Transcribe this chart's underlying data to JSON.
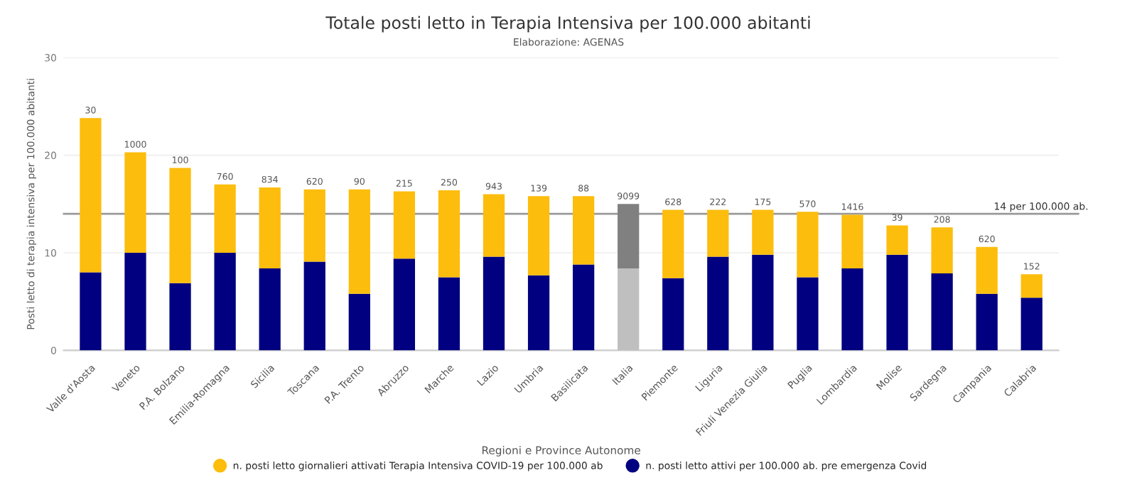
{
  "chart_data": {
    "type": "bar",
    "title": "Totale posti letto in Terapia Intensiva per 100.000 abitanti",
    "subtitle": "Elaborazione: AGENAS",
    "xlabel": "Regioni e Province Autonome",
    "ylabel": "Posti letto di terapia intensiva per 100.000 abitanti",
    "categories": [
      "Valle d'Aosta",
      "Veneto",
      "P.A. Bolzano",
      "Emilia-Romagna",
      "Sicilia",
      "Toscana",
      "P.A. Trento",
      "Abruzzo",
      "Marche",
      "Lazio",
      "Umbria",
      "Basilicata",
      "Italia",
      "Piemonte",
      "Liguria",
      "Friuli Venezia Giulia",
      "Puglia",
      "Lombardia",
      "Molise",
      "Sardegna",
      "Campania",
      "Calabria"
    ],
    "stacked": true,
    "series": [
      {
        "name": "n. posti letto attivi per 100.000 ab. pre emergenza Covid",
        "color": "#000080",
        "colors": [
          "#000080",
          "#000080",
          "#000080",
          "#000080",
          "#000080",
          "#000080",
          "#000080",
          "#000080",
          "#000080",
          "#000080",
          "#000080",
          "#000080",
          "#bfbfbf",
          "#000080",
          "#000080",
          "#000080",
          "#000080",
          "#000080",
          "#000080",
          "#000080",
          "#000080",
          "#000080"
        ],
        "values": [
          8.0,
          10.0,
          6.9,
          10.0,
          8.4,
          9.1,
          5.8,
          9.4,
          7.5,
          9.6,
          7.7,
          8.8,
          8.4,
          7.4,
          9.6,
          9.8,
          7.5,
          8.4,
          9.8,
          7.9,
          5.8,
          5.4
        ]
      },
      {
        "name": "n. posti letto giornalieri attivati Terapia Intensiva COVID-19 per 100.000 ab",
        "color": "#fdbd0c",
        "colors": [
          "#fdbd0c",
          "#fdbd0c",
          "#fdbd0c",
          "#fdbd0c",
          "#fdbd0c",
          "#fdbd0c",
          "#fdbd0c",
          "#fdbd0c",
          "#fdbd0c",
          "#fdbd0c",
          "#fdbd0c",
          "#fdbd0c",
          "#808080",
          "#fdbd0c",
          "#fdbd0c",
          "#fdbd0c",
          "#fdbd0c",
          "#fdbd0c",
          "#fdbd0c",
          "#fdbd0c",
          "#fdbd0c",
          "#fdbd0c"
        ],
        "values": [
          15.8,
          10.3,
          11.8,
          7.0,
          8.3,
          7.4,
          10.7,
          6.9,
          8.9,
          6.4,
          8.1,
          7.0,
          6.6,
          7.0,
          4.8,
          4.6,
          6.7,
          5.5,
          3.0,
          4.7,
          4.8,
          2.4
        ]
      }
    ],
    "annotations": [
      {
        "text": "30",
        "x": "Valle d'Aosta",
        "y": 23.8
      },
      {
        "text": "1000",
        "x": "Veneto",
        "y": 20.3
      },
      {
        "text": "100",
        "x": "P.A. Bolzano",
        "y": 18.7
      },
      {
        "text": "760",
        "x": "Emilia-Romagna",
        "y": 17.0
      },
      {
        "text": "834",
        "x": "Sicilia",
        "y": 16.7
      },
      {
        "text": "620",
        "x": "Toscana",
        "y": 16.5
      },
      {
        "text": "90",
        "x": "P.A. Trento",
        "y": 16.5
      },
      {
        "text": "215",
        "x": "Abruzzo",
        "y": 16.3
      },
      {
        "text": "250",
        "x": "Marche",
        "y": 16.4
      },
      {
        "text": "943",
        "x": "Lazio",
        "y": 16.0
      },
      {
        "text": "139",
        "x": "Umbria",
        "y": 15.8
      },
      {
        "text": "88",
        "x": "Basilicata",
        "y": 15.8
      },
      {
        "text": "9099",
        "x": "Italia",
        "y": 15.0
      },
      {
        "text": "628",
        "x": "Piemonte",
        "y": 14.4
      },
      {
        "text": "222",
        "x": "Liguria",
        "y": 14.4
      },
      {
        "text": "175",
        "x": "Friuli Venezia Giulia",
        "y": 14.4
      },
      {
        "text": "570",
        "x": "Puglia",
        "y": 14.2
      },
      {
        "text": "1416",
        "x": "Lombardia",
        "y": 13.9
      },
      {
        "text": "39",
        "x": "Molise",
        "y": 12.8
      },
      {
        "text": "208",
        "x": "Sardegna",
        "y": 12.6
      },
      {
        "text": "620",
        "x": "Campania",
        "y": 10.6
      },
      {
        "text": "152",
        "x": "Calabria",
        "y": 7.8
      }
    ],
    "ylim": [
      0,
      30
    ],
    "yticks": [
      0,
      10,
      20,
      30
    ],
    "grid": "y",
    "legend": "bottom",
    "ref_lines": [
      {
        "axis": "y",
        "value": 14,
        "label": "14 per 100.000 ab.",
        "color": "#999999"
      }
    ]
  }
}
